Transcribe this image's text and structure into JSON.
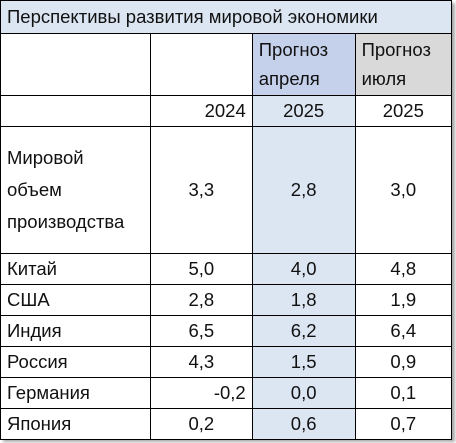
{
  "title": "Перспективы развития мировой экономики",
  "colors": {
    "title_bg": "#dce6f2",
    "april_header_bg": "#c5d1ea",
    "april_col_bg": "#dce6f2",
    "july_header_bg": "#d9d9d9"
  },
  "header": {
    "april_line1": "Прогноз",
    "april_line2": "апреля",
    "july_line1": "Прогноз",
    "july_line2": "июля"
  },
  "years": [
    "2024",
    "2025",
    "2025"
  ],
  "rows": [
    {
      "label": [
        "Мировой",
        "объем",
        "производства"
      ],
      "values": [
        "3,3",
        "2,8",
        "3,0"
      ]
    },
    {
      "label": [
        "Китай"
      ],
      "values": [
        "5,0",
        "4,0",
        "4,8"
      ]
    },
    {
      "label": [
        "США"
      ],
      "values": [
        "2,8",
        "1,8",
        "1,9"
      ]
    },
    {
      "label": [
        "Индия"
      ],
      "values": [
        "6,5",
        "6,2",
        "6,4"
      ]
    },
    {
      "label": [
        "Россия"
      ],
      "values": [
        "4,3",
        "1,5",
        "0,9"
      ]
    },
    {
      "label": [
        "Германия"
      ],
      "values": [
        "-0,2",
        "0,0",
        "0,1"
      ]
    },
    {
      "label": [
        "Япония"
      ],
      "values": [
        "0,2",
        "0,6",
        "0,7"
      ]
    }
  ]
}
